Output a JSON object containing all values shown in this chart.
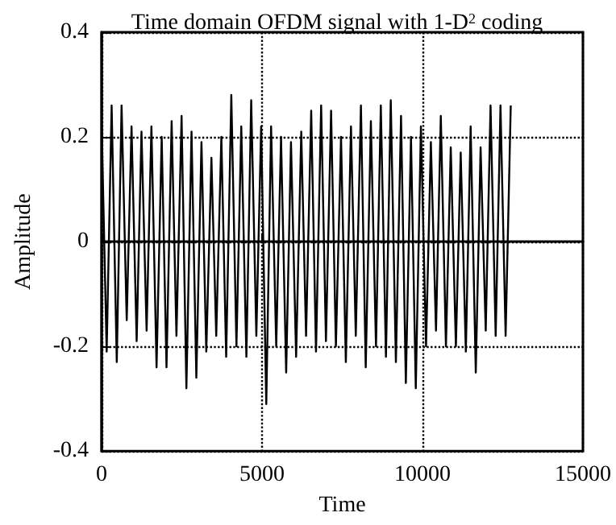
{
  "chart_data": {
    "type": "line",
    "title": "Time domain OFDM signal with 1-D$^{2}$ coding",
    "xlabel": "Time",
    "ylabel": "Amplitude",
    "xlim": [
      0,
      15000
    ],
    "xticks": [
      0,
      5000,
      10000,
      15000
    ],
    "ylim": [
      -0.4,
      0.4
    ],
    "yticks": [
      -0.4,
      -0.2,
      0,
      0.2,
      0.4
    ],
    "grid": true,
    "line_style": "solid",
    "marker": "none",
    "series": [
      {
        "color": "#000000",
        "x": [
          0,
          155,
          310,
          470,
          620,
          780,
          930,
          1090,
          1240,
          1400,
          1550,
          1710,
          1870,
          2020,
          2180,
          2330,
          2490,
          2640,
          2800,
          2950,
          3110,
          3260,
          3420,
          3570,
          3730,
          3880,
          4040,
          4200,
          4350,
          4510,
          4660,
          4820,
          4970,
          5130,
          5280,
          5440,
          5590,
          5750,
          5900,
          6060,
          6220,
          6370,
          6530,
          6680,
          6840,
          6990,
          7150,
          7300,
          7460,
          7610,
          7770,
          7920,
          8080,
          8230,
          8390,
          8550,
          8700,
          8860,
          9010,
          9170,
          9330,
          9480,
          9640,
          9790,
          9950,
          10110,
          10260,
          10420,
          10570,
          10730,
          10880,
          11040,
          11190,
          11350,
          11500,
          11660,
          11810,
          11970,
          12120,
          12280,
          12430,
          12590,
          12750
        ],
        "values": [
          0.22,
          -0.21,
          0.26,
          -0.23,
          0.26,
          -0.15,
          0.22,
          -0.19,
          0.21,
          -0.17,
          0.22,
          -0.24,
          0.2,
          -0.24,
          0.23,
          -0.18,
          0.24,
          -0.28,
          0.21,
          -0.26,
          0.19,
          -0.21,
          0.16,
          -0.18,
          0.2,
          -0.22,
          0.28,
          -0.2,
          0.22,
          -0.22,
          0.27,
          -0.18,
          0.22,
          -0.31,
          0.22,
          -0.2,
          0.2,
          -0.25,
          0.19,
          -0.22,
          0.21,
          -0.18,
          0.25,
          -0.21,
          0.26,
          -0.19,
          0.25,
          -0.2,
          0.2,
          -0.23,
          0.22,
          -0.18,
          0.26,
          -0.24,
          0.23,
          -0.2,
          0.26,
          -0.22,
          0.27,
          -0.23,
          0.24,
          -0.27,
          0.2,
          -0.28,
          0.22,
          -0.2,
          0.19,
          -0.17,
          0.24,
          -0.2,
          0.18,
          -0.2,
          0.17,
          -0.21,
          0.22,
          -0.25,
          0.18,
          -0.17,
          0.26,
          -0.18,
          0.26,
          -0.18,
          0.26
        ]
      }
    ]
  }
}
